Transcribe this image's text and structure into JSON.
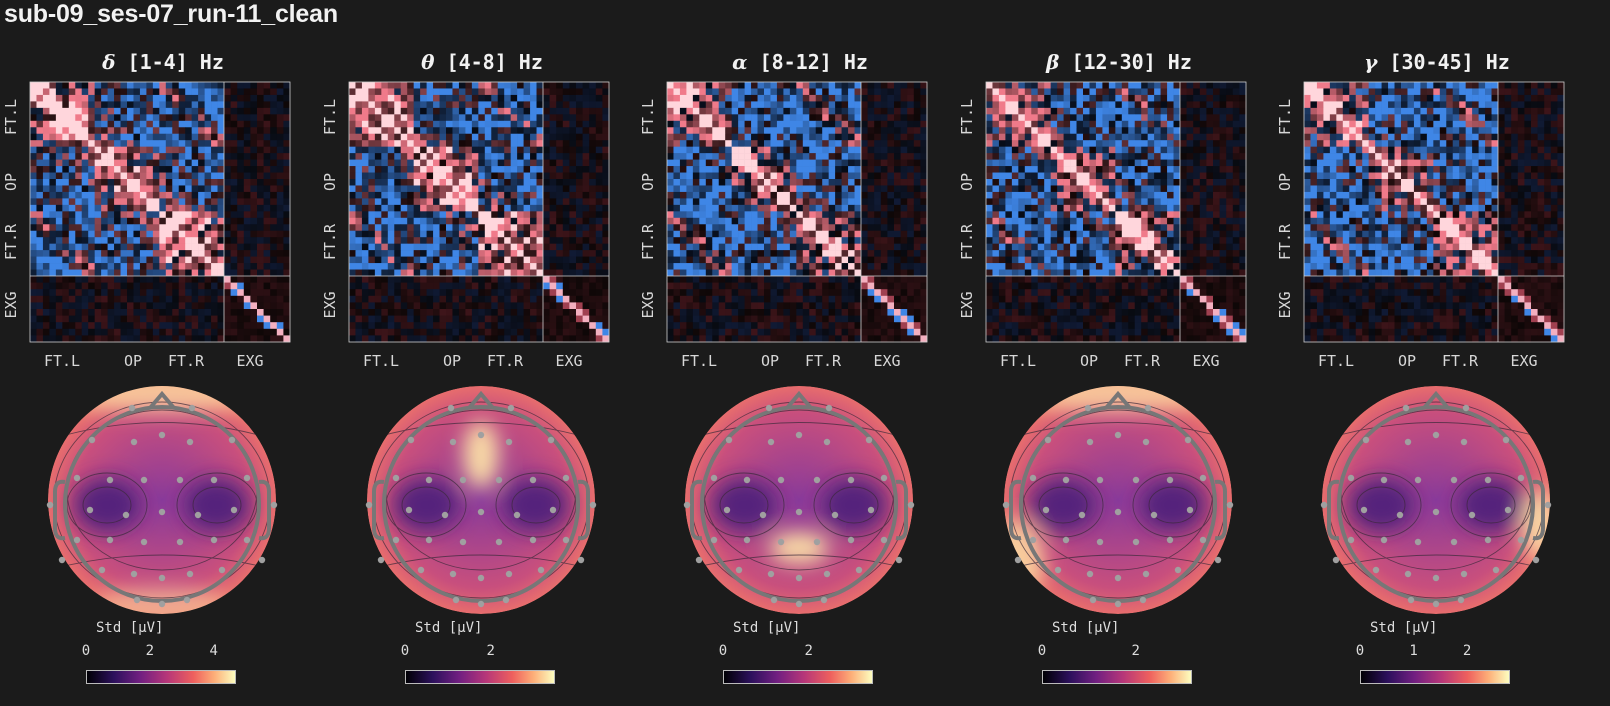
{
  "page_title": "sub-09_ses-07_run-11_clean",
  "colors": {
    "background": "#1b1b1b",
    "positive": "#f07a8a",
    "negative": "#3f86e6",
    "topo_low": "#5b2a8a",
    "topo_high": "#fde3a8"
  },
  "axis_groups": {
    "x": [
      "FT.L",
      "OP",
      "FT.R",
      "EXG"
    ],
    "y": [
      "FT.L",
      "OP",
      "FT.R",
      "EXG"
    ]
  },
  "colorbar_label": "Std [µV]",
  "chart_data": [
    {
      "type": "heatmap",
      "greek": "δ",
      "title": " [1-4] Hz",
      "colorbar_ticks": [
        "0",
        "2",
        "4"
      ],
      "colorbar_tick_values": [
        0,
        2,
        4
      ],
      "colorbar_max": 4.7,
      "topo_hotspots": [
        "frontal-edge",
        "occipital-edge"
      ]
    },
    {
      "type": "heatmap",
      "greek": "θ",
      "title": " [4-8] Hz",
      "colorbar_ticks": [
        "0",
        "2"
      ],
      "colorbar_tick_values": [
        0,
        2
      ],
      "colorbar_max": 3.5,
      "topo_hotspots": [
        "frontal-midline"
      ]
    },
    {
      "type": "heatmap",
      "greek": "α",
      "title": " [8-12] Hz",
      "colorbar_ticks": [
        "0",
        "2"
      ],
      "colorbar_tick_values": [
        0,
        2
      ],
      "colorbar_max": 3.5,
      "topo_hotspots": [
        "parietal-midline"
      ]
    },
    {
      "type": "heatmap",
      "greek": "β",
      "title": " [12-30] Hz",
      "colorbar_ticks": [
        "0",
        "2"
      ],
      "colorbar_tick_values": [
        0,
        2
      ],
      "colorbar_max": 3.2,
      "topo_hotspots": [
        "frontal-edge",
        "temporal-left"
      ]
    },
    {
      "type": "heatmap",
      "greek": "γ",
      "title": " [30-45] Hz",
      "colorbar_ticks": [
        "0",
        "1",
        "2"
      ],
      "colorbar_tick_values": [
        0,
        1,
        2
      ],
      "colorbar_max": 2.8,
      "topo_hotspots": [
        "temporal-right"
      ]
    }
  ]
}
